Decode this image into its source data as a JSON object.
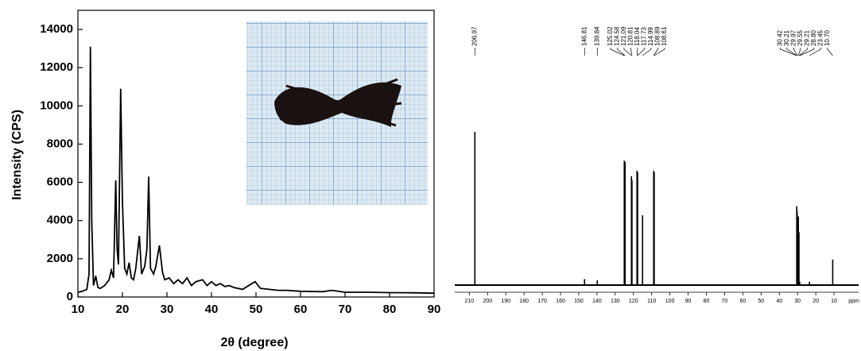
{
  "chart_data": [
    {
      "type": "line",
      "color": "#000000",
      "x_label": "2θ (degree)",
      "y_label": "Intensity (CPS)",
      "x": [
        10,
        11,
        12,
        12.5,
        12.8,
        13.1,
        13.5,
        14,
        14.5,
        15,
        16,
        17,
        17.5,
        18,
        18.5,
        18.8,
        19.1,
        19.6,
        20,
        20.5,
        21,
        21.5,
        22,
        22.5,
        23,
        23.8,
        24.3,
        25,
        25.5,
        25.9,
        26.3,
        27,
        27.5,
        28.3,
        29,
        29.5,
        30.5,
        31.5,
        32.5,
        33.5,
        34.5,
        35.5,
        36.5,
        38,
        39,
        40,
        41,
        42,
        43,
        44,
        45,
        47,
        48,
        49.8,
        51,
        53,
        55,
        57,
        60,
        65,
        67,
        70,
        75,
        80,
        85,
        90
      ],
      "values": [
        250,
        300,
        400,
        1200,
        13100,
        4000,
        600,
        1100,
        500,
        450,
        600,
        900,
        1400,
        1000,
        6100,
        2500,
        1700,
        10900,
        5000,
        1500,
        1200,
        1800,
        1000,
        900,
        1500,
        3200,
        1200,
        1600,
        2500,
        6300,
        1500,
        1200,
        1600,
        2700,
        1300,
        900,
        1000,
        700,
        900,
        700,
        1000,
        600,
        800,
        900,
        600,
        800,
        600,
        700,
        550,
        600,
        500,
        400,
        550,
        800,
        450,
        400,
        350,
        350,
        300,
        280,
        350,
        250,
        250,
        230,
        220,
        200
      ],
      "xlim": [
        10,
        90
      ],
      "xticks": [
        10,
        20,
        30,
        40,
        50,
        60,
        70,
        80,
        90
      ],
      "ylim": [
        0,
        15000
      ],
      "yticks": [
        0,
        2000,
        4000,
        6000,
        8000,
        10000,
        12000,
        14000
      ]
    },
    {
      "type": "spectrum",
      "color": "#000000",
      "x_unit": "ppm",
      "x": [
        206.97,
        146.81,
        139.84,
        125.02,
        124.58,
        121.09,
        120.81,
        118.04,
        117.73,
        114.99,
        108.89,
        108.61,
        30.42,
        30.21,
        29.97,
        29.55,
        29.21,
        28.8,
        23.45,
        10.7
      ],
      "values": [
        58.5,
        2,
        1.5,
        47.5,
        47,
        41.5,
        40,
        43.6,
        43,
        26.5,
        43.6,
        43,
        30,
        28,
        26,
        26,
        20,
        1,
        1,
        9.5
      ],
      "peak_labels": [
        "206.97",
        "146.81",
        "139.84",
        "125.02",
        "124.58",
        "121.09",
        "120.81",
        "118.04",
        "117.73",
        "114.99",
        "108.89",
        "108.61",
        "30.42",
        "30.21",
        "29.97",
        "29.55",
        "29.21",
        "28.80",
        "23.45",
        "10.70"
      ],
      "xlim": [
        218,
        -3.5
      ],
      "xticks": [
        210,
        200,
        190,
        180,
        170,
        160,
        150,
        140,
        130,
        120,
        110,
        100,
        90,
        80,
        70,
        60,
        50,
        40,
        30,
        20,
        10
      ],
      "ylim": [
        0,
        100
      ]
    }
  ]
}
